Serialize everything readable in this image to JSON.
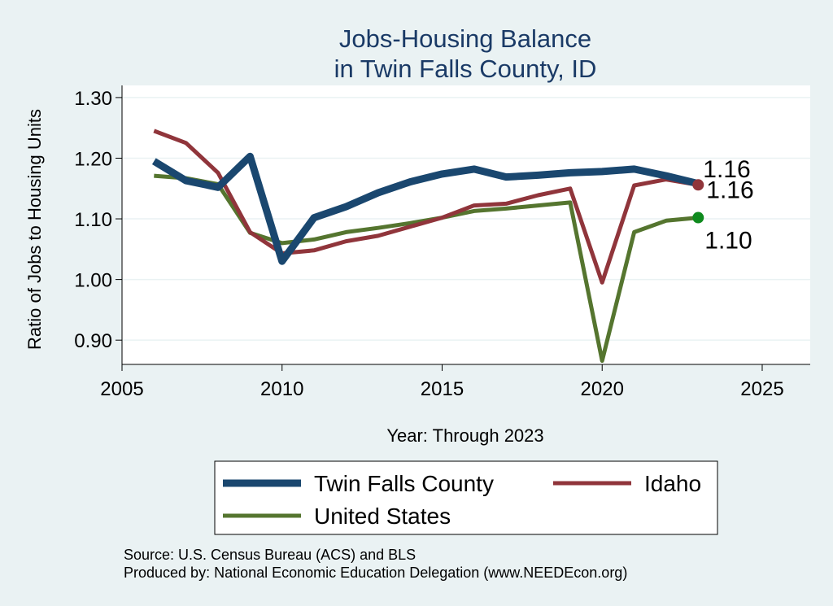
{
  "chart_data": {
    "type": "line",
    "title": [
      "Jobs-Housing Balance",
      "in Twin Falls County, ID"
    ],
    "xlabel": "Year: Through 2023",
    "ylabel": "Ratio of Jobs to Housing Units",
    "xlim": [
      2005,
      2026.5
    ],
    "ylim": [
      0.86,
      1.32
    ],
    "xticks": [
      2005,
      2010,
      2015,
      2020,
      2025
    ],
    "yticks": [
      0.9,
      1.0,
      1.1,
      1.2,
      1.3
    ],
    "ytick_labels": [
      "0.90",
      "1.00",
      "1.10",
      "1.20",
      "1.30"
    ],
    "grid": true,
    "x": [
      2006,
      2007,
      2008,
      2009,
      2010,
      2011,
      2012,
      2013,
      2014,
      2015,
      2016,
      2017,
      2018,
      2019,
      2020,
      2021,
      2022,
      2023
    ],
    "series": [
      {
        "name": "Twin Falls County",
        "color": "#1a476f",
        "values": [
          1.195,
          1.163,
          1.152,
          1.203,
          1.03,
          1.102,
          1.12,
          1.143,
          1.161,
          1.174,
          1.182,
          1.169,
          1.172,
          1.176,
          1.178,
          1.182,
          1.171,
          1.158
        ],
        "end_label": "1.16"
      },
      {
        "name": "Idaho",
        "color": "#90353b",
        "values": [
          1.245,
          1.225,
          1.176,
          1.078,
          1.043,
          1.048,
          1.063,
          1.072,
          1.087,
          1.102,
          1.122,
          1.125,
          1.139,
          1.15,
          0.995,
          1.155,
          1.165,
          1.156
        ],
        "end_label": "1.16"
      },
      {
        "name": "United States",
        "color": "#55752f",
        "values": [
          1.171,
          1.167,
          1.157,
          1.077,
          1.06,
          1.066,
          1.078,
          1.085,
          1.093,
          1.102,
          1.113,
          1.117,
          1.122,
          1.127,
          0.866,
          1.078,
          1.097,
          1.102
        ],
        "end_label": "1.10"
      }
    ],
    "end_markers": [
      {
        "series": "Idaho",
        "color": "#90353b"
      },
      {
        "series": "United States",
        "color": "#0f8a1e"
      }
    ],
    "legend_position": "bottom",
    "notes": [
      "Source: U.S. Census Bureau (ACS) and BLS",
      "Produced by: National Economic Education Delegation (www.NEEDEcon.org)"
    ]
  }
}
